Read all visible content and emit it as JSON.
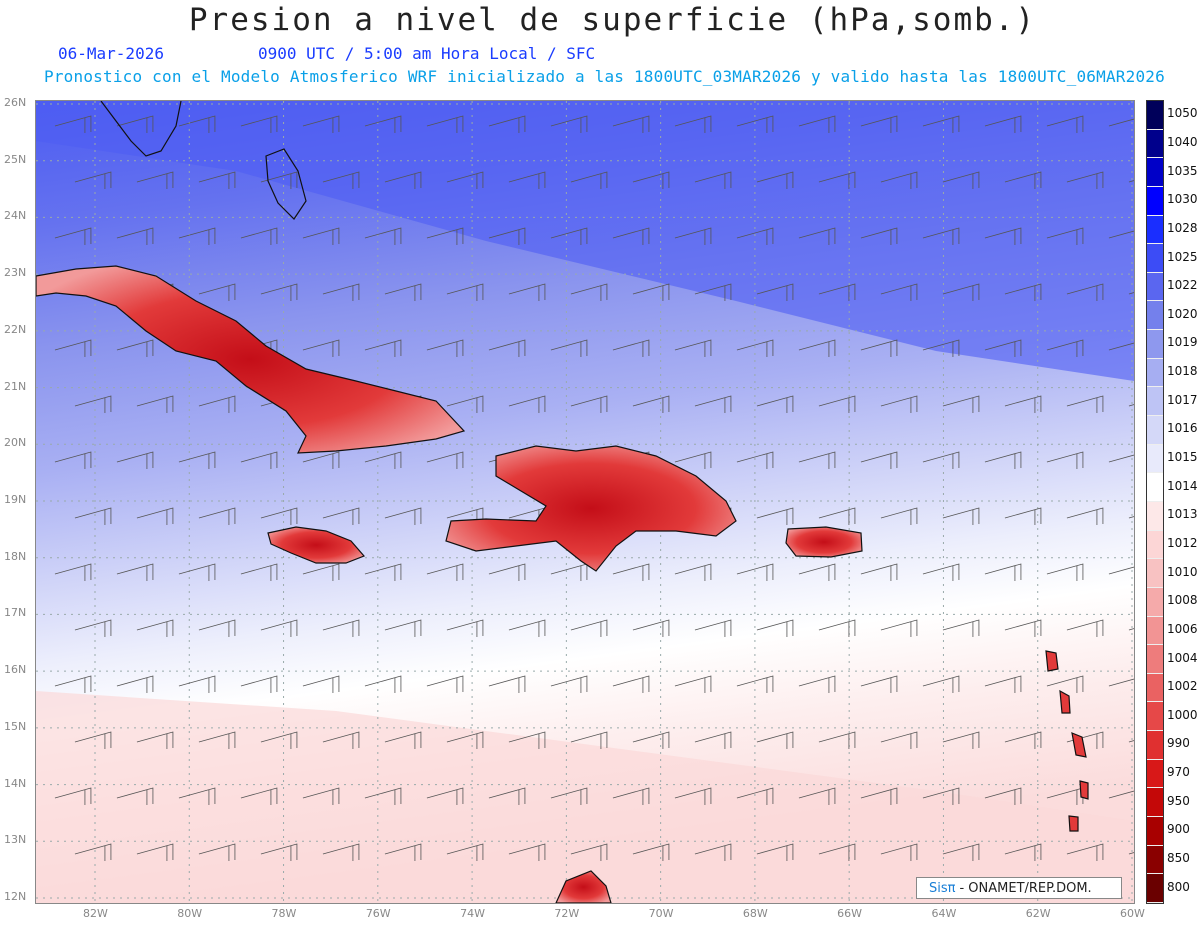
{
  "title": "Presion a nivel de superficie (hPa,somb.)",
  "date": "06-Mar-2026",
  "time_info": "0900 UTC / 5:00 am Hora Local / SFC",
  "forecast_info": "Pronostico con el Modelo Atmosferico WRF inicializado a las 1800UTC_03MAR2026 y valido hasta las  1800UTC_06MAR2026",
  "lat_labels": [
    "26N",
    "25N",
    "24N",
    "23N",
    "22N",
    "21N",
    "20N",
    "19N",
    "18N",
    "17N",
    "16N",
    "15N",
    "14N",
    "13N",
    "12N"
  ],
  "lon_labels": [
    "82W",
    "80W",
    "78W",
    "76W",
    "74W",
    "72W",
    "70W",
    "68W",
    "66W",
    "64W",
    "62W",
    "60W"
  ],
  "colorbar": {
    "levels": [
      "1050",
      "1040",
      "1035",
      "1030",
      "1028",
      "1025",
      "1022",
      "1020",
      "1019",
      "1018",
      "1017",
      "1016",
      "1015",
      "1014",
      "1013",
      "1012",
      "1010",
      "1008",
      "1006",
      "1004",
      "1002",
      "1000",
      "990",
      "970",
      "950",
      "900",
      "850",
      "800"
    ],
    "colors": [
      "#00005a",
      "#00008c",
      "#0000c8",
      "#0000ff",
      "#1a2eff",
      "#3c4cf6",
      "#5a66f0",
      "#7480ec",
      "#8e98ee",
      "#a6aef2",
      "#bec4f5",
      "#d4d8f8",
      "#e8eafb",
      "#ffffff",
      "#fde8e8",
      "#fcd6d6",
      "#f8c2c2",
      "#f5aaaa",
      "#f29494",
      "#ee7c7c",
      "#ea6262",
      "#e64848",
      "#e03030",
      "#d81818",
      "#c40808",
      "#a80000",
      "#8a0000",
      "#6a0000"
    ]
  },
  "logo": {
    "brand": "Sisπ",
    "org": "- ONAMET/REP.DOM."
  }
}
